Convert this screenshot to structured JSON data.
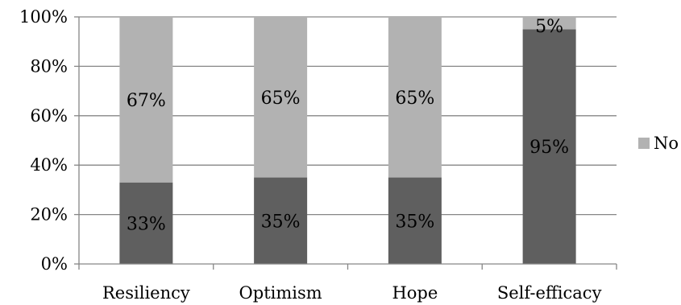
{
  "chart_data": {
    "type": "bar",
    "stacked": true,
    "categories": [
      "Resiliency",
      "Optimism",
      "Hope",
      "Self-efficacy"
    ],
    "series": [
      {
        "values": [
          33,
          35,
          35,
          95
        ],
        "labels": [
          "33%",
          "35%",
          "35%",
          "95%"
        ],
        "color": "#5f5f5f"
      },
      {
        "name": "No",
        "values": [
          67,
          65,
          65,
          5
        ],
        "labels": [
          "67%",
          "65%",
          "65%",
          "5%"
        ],
        "color": "#b2b2b2"
      }
    ],
    "y_ticks": [
      "0%",
      "20%",
      "40%",
      "60%",
      "80%",
      "100%"
    ],
    "ylim": [
      0,
      100
    ],
    "grid": true,
    "legend": {
      "position": "right",
      "entries": [
        "No"
      ]
    },
    "axis_color": "#868686",
    "grid_color": "#868686"
  }
}
